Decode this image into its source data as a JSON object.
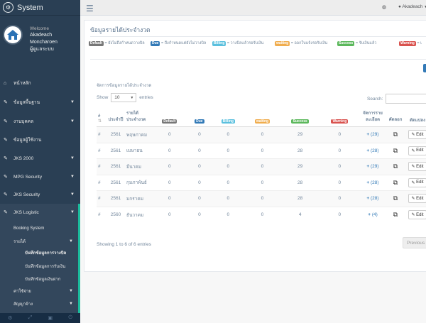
{
  "brand": {
    "name": "System",
    "icon": "gears-icon"
  },
  "profile": {
    "welcome": "Welcome",
    "name1": "Akadeach",
    "name2": "Moncharoen",
    "role": "ผู้ดูแลระบบ"
  },
  "menu": [
    {
      "label": "หน้าหลัก",
      "icon": "home-icon",
      "chevron": false
    },
    {
      "label": "ข้อมูลพื้นฐาน",
      "icon": "edit-icon",
      "chevron": true
    },
    {
      "label": "งานบุคคล",
      "icon": "edit-icon",
      "chevron": true
    },
    {
      "label": "ข้อมูลผู้ใช้งาน",
      "icon": "edit-icon",
      "chevron": false
    },
    {
      "label": "JKS 2000",
      "icon": "edit-icon",
      "chevron": true
    },
    {
      "label": "MPG Security",
      "icon": "edit-icon",
      "chevron": true
    },
    {
      "label": "JKS Security",
      "icon": "edit-icon",
      "chevron": true
    },
    {
      "label": "JKS Logistic",
      "icon": "edit-icon",
      "chevron": true
    }
  ],
  "submenu": {
    "booking": "Booking System",
    "income": "รายได้",
    "income_items": [
      "บันทึกข้อมูลการวางบิล",
      "บันทึกข้อมูลการรับเงิน",
      "บันทึกข้อมูลเงินฝาก"
    ],
    "expense": "ค่าใช้จ่าย",
    "contract": "สัญญาจ้าง"
  },
  "topnav": {
    "user": "Akadeach"
  },
  "page_title": "ข้อมูลรายได้ประจำงวด",
  "legend": [
    {
      "badge": "Default",
      "text": "= ยังไม่ถึงกำหนดวางบิล",
      "cls": "b-default"
    },
    {
      "badge": "Due",
      "text": "= ถึงกำหนดแต่ยังไม่วางบิล",
      "cls": "b-due"
    },
    {
      "badge": "Billing",
      "text": "= วางบิลแล้วรอรับเงิน",
      "cls": "b-billing"
    },
    {
      "badge": "waiting",
      "text": "= ออกใบแจ้งรอรับเงิน",
      "cls": "b-waiting"
    },
    {
      "badge": "Success",
      "text": "= รับเงินแล้ว",
      "cls": "b-success"
    },
    {
      "badge": "Warning",
      "text": "= เ",
      "cls": "b-warning"
    }
  ],
  "list_title": "จัดการข้อมูลรายได้ประจำงวด",
  "show_label": "Show",
  "show_value": "10",
  "entries_label": "entries",
  "search_label": "Search:",
  "table": {
    "headers": {
      "num": "#",
      "year": "ประจำปี",
      "month": "รายได้ประจำงวด",
      "default": "Default",
      "due": "Due",
      "billing": "Billing",
      "waiting": "waiting",
      "success": "Success",
      "warning": "Warning",
      "manage": "จัดการรายละเอียด",
      "copy": "คัดลอก",
      "edit": "ดัดแปลง"
    },
    "rows": [
      {
        "num": "#",
        "year": "2561",
        "month": "พฤษภาคม",
        "default": "0",
        "due": "0",
        "billing": "0",
        "waiting": "0",
        "success": "29",
        "warning": "0",
        "count": "(29)",
        "edit": "Edit"
      },
      {
        "num": "#",
        "year": "2561",
        "month": "เมษายน",
        "default": "0",
        "due": "0",
        "billing": "0",
        "waiting": "0",
        "success": "28",
        "warning": "0",
        "count": "(28)",
        "edit": "Edit"
      },
      {
        "num": "#",
        "year": "2561",
        "month": "มีนาคม",
        "default": "0",
        "due": "0",
        "billing": "0",
        "waiting": "0",
        "success": "29",
        "warning": "0",
        "count": "(29)",
        "edit": "Edit"
      },
      {
        "num": "#",
        "year": "2561",
        "month": "กุมภาพันธ์",
        "default": "0",
        "due": "0",
        "billing": "0",
        "waiting": "0",
        "success": "28",
        "warning": "0",
        "count": "(28)",
        "edit": "Edit"
      },
      {
        "num": "#",
        "year": "2561",
        "month": "มกราคม",
        "default": "0",
        "due": "0",
        "billing": "0",
        "waiting": "0",
        "success": "28",
        "warning": "0",
        "count": "(28)",
        "edit": "Edit"
      },
      {
        "num": "#",
        "year": "2560",
        "month": "ธันวาคม",
        "default": "0",
        "due": "0",
        "billing": "0",
        "waiting": "0",
        "success": "4",
        "warning": "0",
        "count": "(4)",
        "edit": "Edit"
      }
    ]
  },
  "info": "Showing 1 to 6 of 6 entries",
  "previous": "Previous"
}
